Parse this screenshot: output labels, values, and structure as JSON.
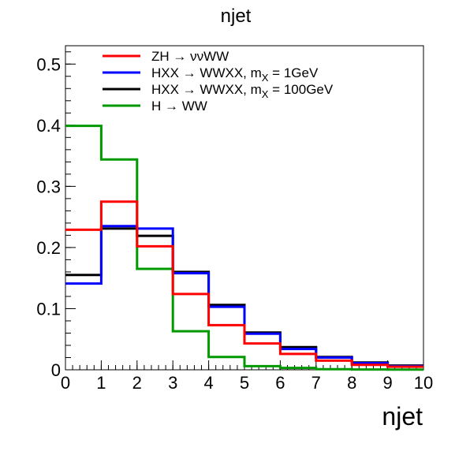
{
  "chart_data": {
    "type": "line",
    "title": "njet",
    "xlabel": "njet",
    "ylabel": "",
    "xlim": [
      0,
      10
    ],
    "ylim": [
      0,
      0.53
    ],
    "x_ticks": [
      "0",
      "1",
      "2",
      "3",
      "4",
      "5",
      "6",
      "7",
      "8",
      "9",
      "10"
    ],
    "y_ticks": [
      "0",
      "0.1",
      "0.2",
      "0.3",
      "0.4",
      "0.5"
    ],
    "bin_edges": [
      0,
      1,
      2,
      3,
      4,
      5,
      6,
      7,
      8,
      9,
      10
    ],
    "legend_position": "top-left",
    "series": [
      {
        "name": "ZH → ννWW",
        "color": "#ff0000",
        "values": [
          0.229,
          0.275,
          0.202,
          0.124,
          0.073,
          0.043,
          0.026,
          0.015,
          0.008,
          0.005
        ]
      },
      {
        "name": "HXX → WWXX, m",
        "name_sub": "X",
        "name_suffix": " = 1GeV",
        "color": "#0000ff",
        "values": [
          0.141,
          0.235,
          0.231,
          0.158,
          0.103,
          0.059,
          0.034,
          0.02,
          0.011,
          0.006
        ]
      },
      {
        "name": "HXX → WWXX, m",
        "name_sub": "X",
        "name_suffix": " = 100GeV",
        "color": "#000000",
        "values": [
          0.155,
          0.231,
          0.219,
          0.16,
          0.106,
          0.061,
          0.037,
          0.021,
          0.012,
          0.007
        ]
      },
      {
        "name": "H → WW",
        "color": "#009900",
        "values": [
          0.399,
          0.344,
          0.165,
          0.063,
          0.021,
          0.006,
          0.003,
          0.001,
          0.0005,
          0.0003
        ]
      }
    ]
  }
}
